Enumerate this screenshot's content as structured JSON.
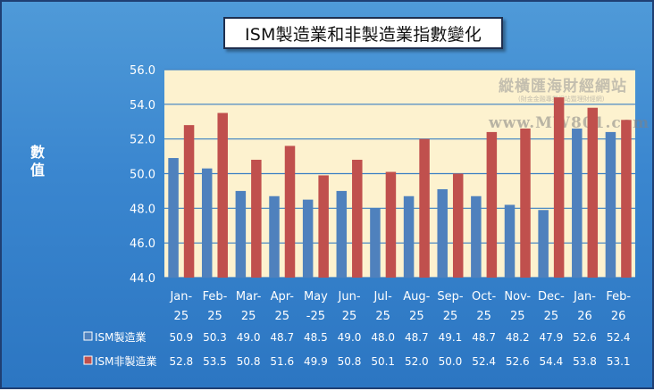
{
  "title": "ISM製造業和非製造業指數變化",
  "watermark": {
    "name": "縱橫匯海財經網站",
    "sub": "(財金金融專業網站暨理財經網)",
    "url": "www.MW801.com"
  },
  "chart_data": {
    "type": "bar",
    "title": "ISM製造業和非製造業指數變化",
    "ylabel": "數值",
    "xlabel": "",
    "ylim": [
      44.0,
      56.0
    ],
    "yticks": [
      "44.0",
      "46.0",
      "48.0",
      "50.0",
      "52.0",
      "54.0",
      "56.0"
    ],
    "categories": [
      "Jan-25",
      "Feb-25",
      "Mar-25",
      "Apr-25",
      "May-25",
      "Jun-25",
      "Jul-25",
      "Aug-25",
      "Sep-25",
      "Oct-25",
      "Nov-25",
      "Dec-25",
      "Jan-26",
      "Feb-26"
    ],
    "category_labels": [
      [
        "Jan-",
        "25"
      ],
      [
        "Feb-",
        "25"
      ],
      [
        "Mar-",
        "25"
      ],
      [
        "Apr-",
        "25"
      ],
      [
        "May",
        "-25"
      ],
      [
        "Jun-",
        "25"
      ],
      [
        "Jul-",
        "25"
      ],
      [
        "Aug-",
        "25"
      ],
      [
        "Sep-",
        "25"
      ],
      [
        "Oct-",
        "25"
      ],
      [
        "Nov-",
        "25"
      ],
      [
        "Dec-",
        "25"
      ],
      [
        "Jan-",
        "26"
      ],
      [
        "Feb-",
        "26"
      ]
    ],
    "series": [
      {
        "name": "ISM製造業",
        "color": "#4f81bd",
        "values": [
          50.9,
          50.3,
          49.0,
          48.7,
          48.5,
          49.0,
          48.0,
          48.7,
          49.1,
          48.7,
          48.2,
          47.9,
          52.6,
          52.4
        ],
        "labels": [
          "50.9",
          "50.3",
          "49.0",
          "48.7",
          "48.5",
          "49.0",
          "48.0",
          "48.7",
          "49.1",
          "48.7",
          "48.2",
          "47.9",
          "52.6",
          "52.4"
        ]
      },
      {
        "name": "ISM非製造業",
        "color": "#c0504d",
        "values": [
          52.8,
          53.5,
          50.8,
          51.6,
          49.9,
          50.8,
          50.1,
          52.0,
          50.0,
          52.4,
          52.6,
          54.4,
          53.8,
          53.1
        ],
        "labels": [
          "52.8",
          "53.5",
          "50.8",
          "51.6",
          "49.9",
          "50.8",
          "50.1",
          "52.0",
          "50.0",
          "52.4",
          "52.6",
          "54.4",
          "53.8",
          "53.1"
        ]
      }
    ],
    "grid": true,
    "legend": "data-table"
  }
}
